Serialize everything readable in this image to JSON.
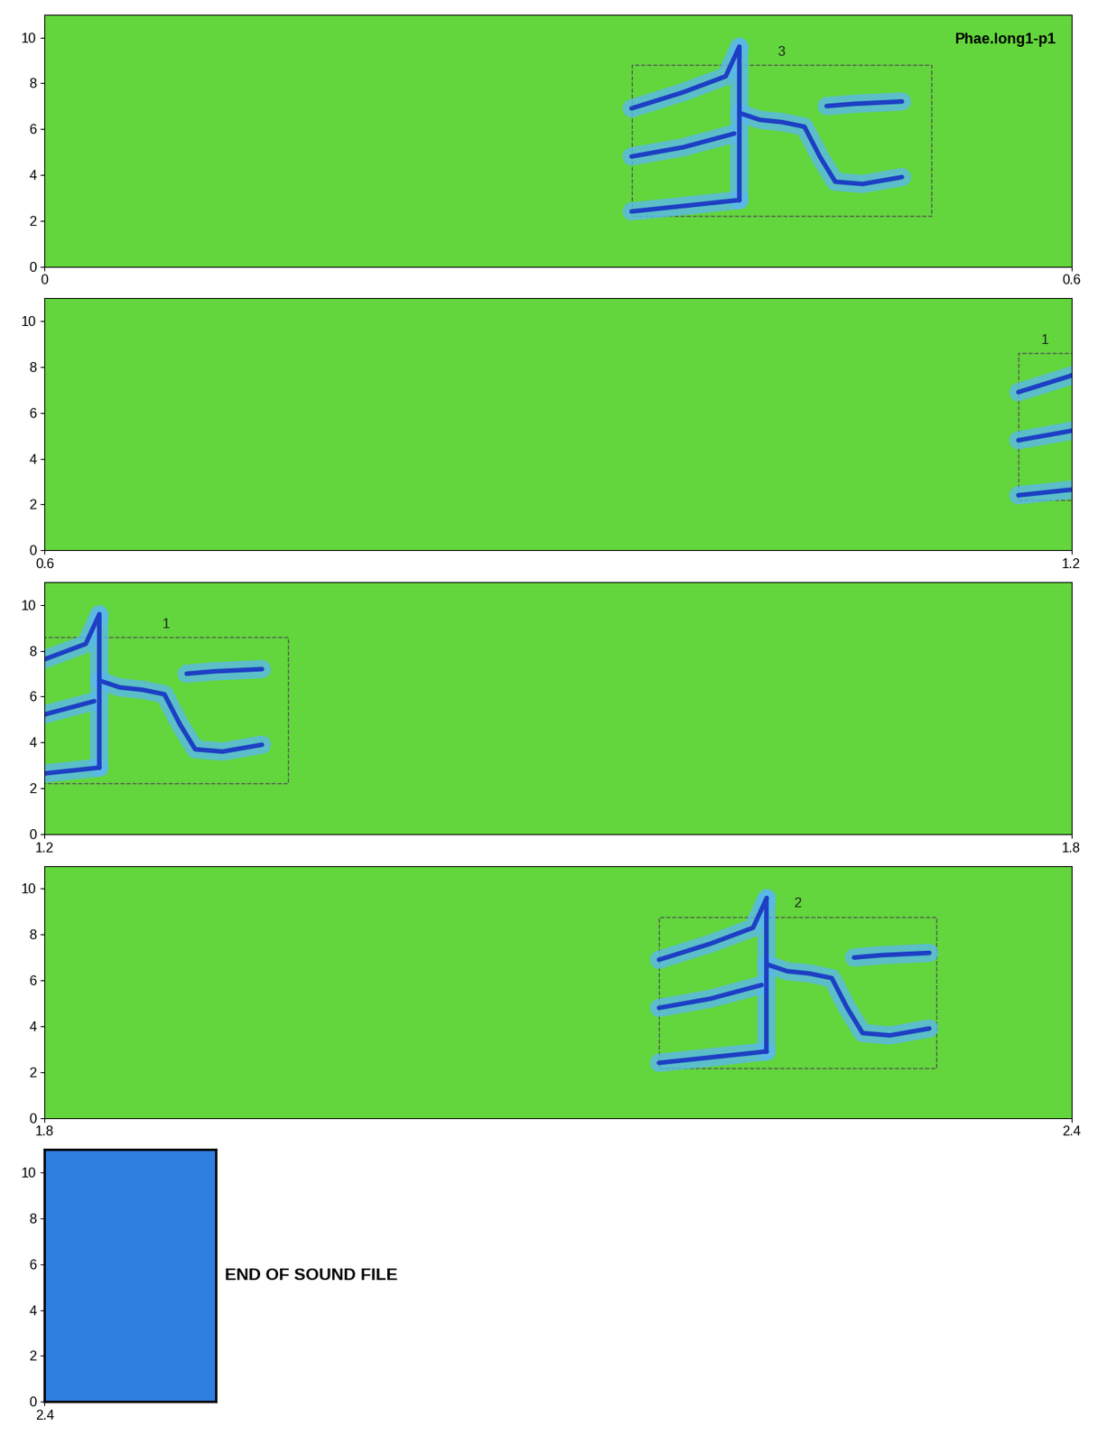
{
  "chart_data": {
    "type": "spectrogram",
    "title": "Phae.long1-p1",
    "ylim": [
      0,
      11
    ],
    "yticks": [
      0,
      2,
      4,
      6,
      8,
      10
    ],
    "panels": [
      {
        "xlim": [
          0,
          0.6
        ],
        "xticks": [
          0,
          0.6
        ]
      },
      {
        "xlim": [
          0.6,
          1.2
        ],
        "xticks": [
          0.6,
          1.2
        ]
      },
      {
        "xlim": [
          1.2,
          1.8
        ],
        "xticks": [
          1.2,
          1.8
        ]
      },
      {
        "xlim": [
          1.8,
          2.4
        ],
        "xticks": [
          1.8,
          2.4
        ]
      },
      {
        "xlim": [
          2.4,
          2.5
        ],
        "xticks": [
          2.4
        ]
      }
    ],
    "annotations": [
      "END OF SOUND FILE"
    ],
    "selections": [
      {
        "label": "3",
        "start": 0.343,
        "end": 0.518,
        "fmin": 2.2,
        "fmax": 8.8
      },
      {
        "label": "1",
        "start": 1.169,
        "end": 1.342,
        "fmin": 2.2,
        "fmax": 8.6
      },
      {
        "label": "2",
        "start": 2.159,
        "end": 2.321,
        "fmin": 2.17,
        "fmax": 8.77
      }
    ],
    "call_template": [
      {
        "dt": [
          0,
          0.063
        ],
        "f": [
          2.4,
          2.9
        ]
      },
      {
        "dt": [
          0,
          0.03,
          0.06
        ],
        "f": [
          4.8,
          5.2,
          5.8
        ]
      },
      {
        "dt": [
          0,
          0.03,
          0.055,
          0.063
        ],
        "f": [
          6.9,
          7.6,
          8.3,
          9.6
        ]
      },
      {
        "dt": [
          0.063,
          0.063
        ],
        "f": [
          2.9,
          9.5
        ]
      },
      {
        "dt": [
          0.063,
          0.075,
          0.088,
          0.101,
          0.11,
          0.119,
          0.135,
          0.158
        ],
        "f": [
          6.7,
          6.4,
          6.3,
          6.1,
          4.8,
          3.7,
          3.6,
          3.9
        ]
      },
      {
        "dt": [
          0.114,
          0.13,
          0.158
        ],
        "f": [
          7.0,
          7.1,
          7.2
        ]
      }
    ]
  }
}
